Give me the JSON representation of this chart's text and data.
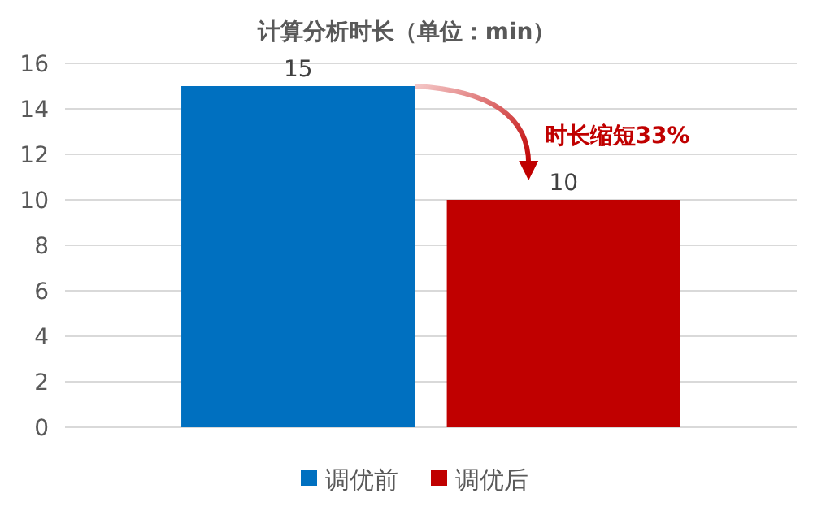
{
  "chart_data": {
    "type": "bar",
    "title": "计算分析时长（单位：min）",
    "categories": [
      null
    ],
    "series": [
      {
        "name": "调优前",
        "color": "#0070c0",
        "values": [
          15
        ]
      },
      {
        "name": "调优后",
        "color": "#c00000",
        "values": [
          10
        ]
      }
    ],
    "ylim": [
      0,
      16
    ],
    "yticks": [
      0,
      2,
      4,
      6,
      8,
      10,
      12,
      14,
      16
    ],
    "grid": "y",
    "legend": "bottom",
    "data_labels": true,
    "annotations": [
      "时长缩短33%"
    ]
  }
}
